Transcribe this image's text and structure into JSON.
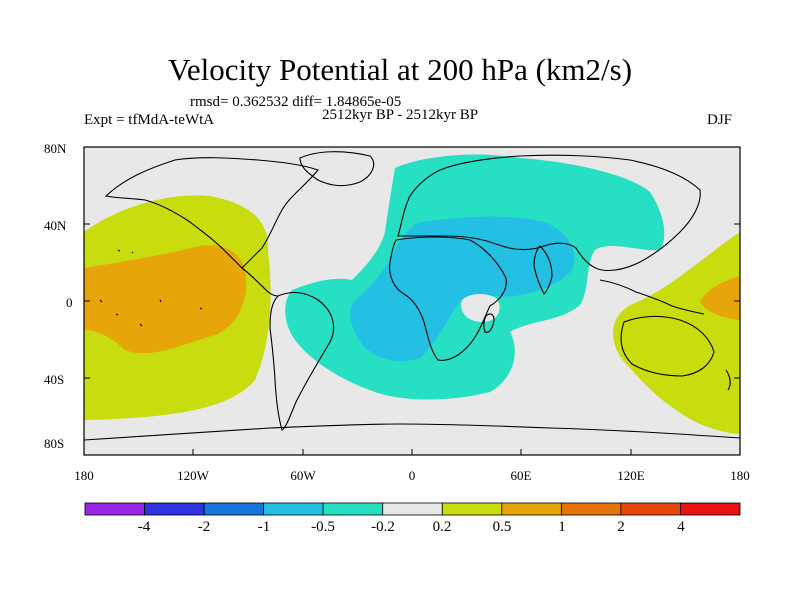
{
  "title": "Velocity Potential at 200 hPa (km2/s)",
  "stats_line": "rmsd= 0.362532  diff= 1.84865e-05",
  "experiment": "Expt = tfMdA-teWtA",
  "period": "2512kyr BP - 2512kyr BP",
  "season": "DJF",
  "axes": {
    "lat_ticks": [
      "80N",
      "40N",
      "0",
      "40S",
      "80S"
    ],
    "lon_ticks": [
      "180",
      "120W",
      "60W",
      "0",
      "60E",
      "120E",
      "180"
    ]
  },
  "colorbar": {
    "colors": [
      "#9a27e6",
      "#2f34e0",
      "#1676dd",
      "#24c0e4",
      "#27e0c3",
      "#e8e8e8",
      "#c8dc0e",
      "#e6a60a",
      "#e6730a",
      "#e6470a",
      "#ea1212"
    ],
    "labels": [
      "-4",
      "-2",
      "-1",
      "-0.5",
      "-0.2",
      "0.2",
      "0.5",
      "1",
      "2",
      "4"
    ]
  },
  "map_colors": {
    "background": "#e8e8e8",
    "positive_weak": "#c8dc0e",
    "positive_mod": "#e6a60a",
    "negative_weak": "#27e0c3",
    "negative_mod": "#24c0e4",
    "coast": "#000000"
  }
}
